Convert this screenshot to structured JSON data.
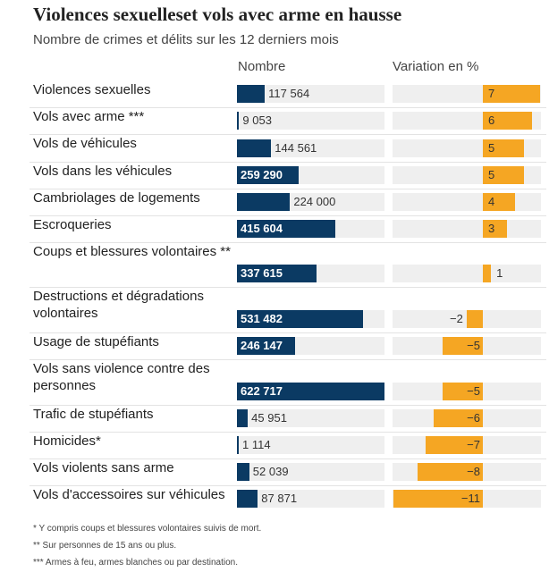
{
  "title": "Violences sexuelles⁣et vols avec arme en hausse",
  "subtitle": "Nombre de crimes et délits sur les 12 derniers mois",
  "chart_data": {
    "type": "bar",
    "columns": [
      "Nombre",
      "Variation en %"
    ],
    "categories": [
      "Violences sexuelles",
      "Vols avec arme ***",
      "Vols de véhicules",
      "Vols dans les véhicules",
      "Cambriolages de logements",
      "Escroqueries",
      "Coups et blessures volontaires **",
      "Destructions et dégradations volontaires",
      "Usage de stupéfiants",
      "Vols sans violence contre des personnes",
      "Trafic de stupéfiants",
      "Homicides*",
      "Vols violents sans arme",
      "Vols d'accessoires sur véhicules"
    ],
    "series": [
      {
        "name": "Nombre",
        "values": [
          117564,
          9053,
          144561,
          259290,
          224000,
          415604,
          337615,
          531482,
          246147,
          622717,
          45951,
          1114,
          52039,
          87871
        ],
        "labels": [
          "117 564",
          "9 053",
          "144 561",
          "259 290",
          "224 000",
          "415 604",
          "337 615",
          "531 482",
          "246 147",
          "622 717",
          "45 951",
          "1 114",
          "52 039",
          "87 871"
        ]
      },
      {
        "name": "Variation en %",
        "values": [
          7,
          6,
          5,
          5,
          4,
          3,
          1,
          -2,
          -5,
          -5,
          -6,
          -7,
          -8,
          -11
        ],
        "labels": [
          "7",
          "6",
          "5",
          "5",
          "4",
          "3",
          "1",
          "−2",
          "−5",
          "−5",
          "−6",
          "−7",
          "−8",
          "−11"
        ]
      }
    ],
    "colors": {
      "nombre": "#0b3a63",
      "variation": "#f5a623",
      "track": "#efefef"
    }
  },
  "footnotes": [
    "* Y compris coups et blessures volontaires suivis de mort.",
    "** Sur personnes de 15 ans ou plus.",
    "*** Armes à feu, armes blanches ou par destination."
  ]
}
